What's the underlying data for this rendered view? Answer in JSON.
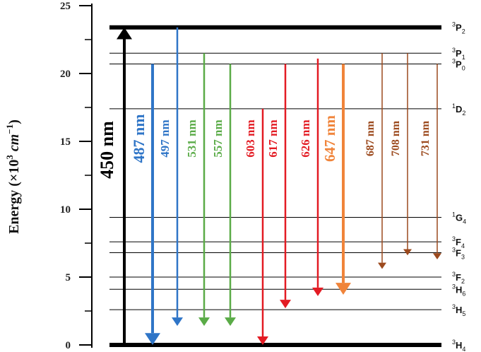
{
  "axis": {
    "title_prefix": "Energy (×10",
    "title_exp": "3",
    "title_unit": " cm",
    "title_unit_exp": "−1",
    "title_suffix": ")",
    "ticks": [
      "0",
      "5",
      "10",
      "15",
      "20",
      "25"
    ],
    "tick_values": [
      0,
      5,
      10,
      15,
      20,
      25
    ],
    "range": [
      0,
      25
    ]
  },
  "levels": [
    {
      "mult": "3",
      "letter": "P",
      "sub": "2",
      "energy": 23.4,
      "thick": true
    },
    {
      "mult": "3",
      "letter": "P",
      "sub": "1",
      "energy": 21.5,
      "thick": false
    },
    {
      "mult": "3",
      "letter": "P",
      "sub": "0",
      "energy": 20.7,
      "thick": false
    },
    {
      "mult": "1",
      "letter": "D",
      "sub": "2",
      "energy": 17.4,
      "thick": false
    },
    {
      "mult": "1",
      "letter": "G",
      "sub": "4",
      "energy": 9.4,
      "thick": false
    },
    {
      "mult": "3",
      "letter": "F",
      "sub": "4",
      "energy": 7.6,
      "thick": false
    },
    {
      "mult": "3",
      "letter": "F",
      "sub": "3",
      "energy": 6.8,
      "thick": false
    },
    {
      "mult": "3",
      "letter": "F",
      "sub": "2",
      "energy": 5.0,
      "thick": false
    },
    {
      "mult": "3",
      "letter": "H",
      "sub": "6",
      "energy": 4.1,
      "thick": false
    },
    {
      "mult": "3",
      "letter": "H",
      "sub": "5",
      "energy": 2.6,
      "thick": false
    },
    {
      "mult": "3",
      "letter": "H",
      "sub": "4",
      "energy": 0,
      "thick": true
    }
  ],
  "colors": {
    "blue": "#2f75c7",
    "green": "#5aab47",
    "red": "#e31b23",
    "orange": "#f0843a",
    "brown": "#9c4a1e",
    "black": "#000000"
  },
  "transitions": [
    {
      "label": "450 nm",
      "color": "black",
      "from": 0,
      "to": 23.4,
      "dir": "up",
      "width": 4,
      "size": 26
    },
    {
      "label": "487 nm",
      "color": "blue",
      "from": 20.7,
      "to": 0,
      "dir": "down",
      "width": 4,
      "size": 22
    },
    {
      "label": "497 nm",
      "color": "blue",
      "from": 23.4,
      "to": 1.4,
      "dir": "down",
      "width": 2.5,
      "size": 17
    },
    {
      "label": "531 nm",
      "color": "green",
      "from": 21.5,
      "to": 1.4,
      "dir": "down",
      "width": 2.5,
      "size": 17
    },
    {
      "label": "557 nm",
      "color": "green",
      "from": 20.7,
      "to": 1.4,
      "dir": "down",
      "width": 2.5,
      "size": 17
    },
    {
      "label": "603 nm",
      "color": "red",
      "from": 17.4,
      "to": 0,
      "dir": "down",
      "width": 2.5,
      "size": 17
    },
    {
      "label": "617 nm",
      "color": "red",
      "from": 20.7,
      "to": 2.7,
      "dir": "down",
      "width": 2.5,
      "size": 17
    },
    {
      "label": "626 nm",
      "color": "red",
      "from": 21.1,
      "to": 3.6,
      "dir": "down",
      "width": 2.5,
      "size": 17
    },
    {
      "label": "647 nm",
      "color": "orange",
      "from": 20.7,
      "to": 3.7,
      "dir": "down",
      "width": 4,
      "size": 21
    },
    {
      "label": "687 nm",
      "color": "brown",
      "from": 21.5,
      "to": 5.6,
      "dir": "down",
      "width": 1.5,
      "size": 16
    },
    {
      "label": "708 nm",
      "color": "brown",
      "from": 21.5,
      "to": 6.6,
      "dir": "down",
      "width": 1.5,
      "size": 16
    },
    {
      "label": "731 nm",
      "color": "brown",
      "from": 20.7,
      "to": 6.3,
      "dir": "down",
      "width": 1.5,
      "size": 16
    }
  ]
}
